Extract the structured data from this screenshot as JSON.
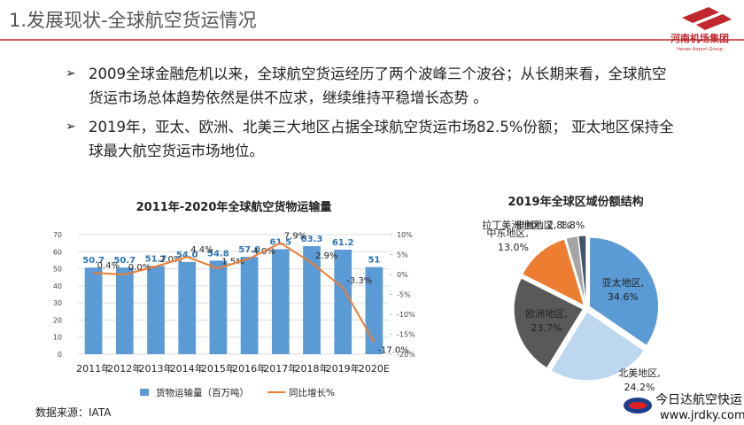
{
  "header": {
    "title": "1.发展现状-全球航空货运情况",
    "logo": "河南机场集团",
    "logo_sub": "Henan Airport Group"
  },
  "bullets": [
    "2009全球金融危机以来，全球航空货运经历了两个波峰三个波谷；从长期来看，全球航空货运市场总体趋势依然是供不应求，继续维持平稳增长态势 。",
    "2019年，亚太、欧洲、北美三大地区占据全球航空货运市场82.5%份额； 亚太地区保持全球最大航空货运市场地位。"
  ],
  "source": "数据来源：IATA",
  "watermark": {
    "name": "今日达航空快运",
    "url": "www.jrdky.com"
  },
  "chart_data": [
    {
      "type": "bar-line",
      "title": "2011年-2020年全球航空货物运输量",
      "categories": [
        "2011年",
        "2012年",
        "2013年",
        "2014年",
        "2015年",
        "2016年",
        "2017年",
        "2018年",
        "2019年",
        "2020E"
      ],
      "series": [
        {
          "name": "货物运输量（百万吨）",
          "color": "#5b9bd5",
          "type": "bar",
          "values": [
            50.7,
            50.7,
            51.7,
            54.0,
            54.8,
            57.0,
            61.5,
            63.3,
            61.2,
            51
          ],
          "value_labels": [
            "50.7",
            "50.7",
            "51.7",
            "54.0",
            "54.8",
            "57.0",
            "61.5",
            "63.3",
            "61.2",
            "51"
          ]
        },
        {
          "name": "同比增长%",
          "color": "#ed7d31",
          "type": "line",
          "axis": "y2",
          "values": [
            0.4,
            0.0,
            2.0,
            4.4,
            1.5,
            4.0,
            7.9,
            2.9,
            -3.3,
            -17.0
          ],
          "value_labels": [
            "0.4%",
            "0.0%",
            "2.0%",
            "4.4%",
            "1.5%",
            "4.0%",
            "7.9%",
            "2.9%",
            "-3.3%",
            "-17.0%"
          ]
        }
      ],
      "ylim": [
        0,
        70
      ],
      "yticks": [
        0,
        10,
        20,
        30,
        40,
        50,
        60,
        70
      ],
      "y2lim": [
        -20,
        10
      ],
      "y2ticks": [
        {
          "value": -20,
          "label": "-20%"
        },
        {
          "value": -15,
          "label": "-15%"
        },
        {
          "value": -10,
          "label": "-10%"
        },
        {
          "value": -5,
          "label": "-5%"
        },
        {
          "value": 0,
          "label": "0%"
        },
        {
          "value": 5,
          "label": "5%"
        },
        {
          "value": 10,
          "label": "10%"
        }
      ],
      "grid": true,
      "legend": "bottom"
    },
    {
      "type": "pie",
      "title": "2019年全球区域份额结构",
      "categories": [
        "亚太地区,",
        "北美地区,",
        "欧洲地区,",
        "中东地区,",
        "拉丁美洲地区,",
        "非洲地区,"
      ],
      "values": [
        34.6,
        24.2,
        23.7,
        13.0,
        2.8,
        1.8
      ],
      "value_labels": [
        "34.6%",
        "24.2%",
        "23.7%",
        "13.0%",
        "2.8%",
        "1.8%"
      ],
      "colors": [
        "#5b9bd5",
        "#bdd7ee",
        "#595959",
        "#ed7d31",
        "#a5a5a5",
        "#44546a"
      ]
    }
  ]
}
